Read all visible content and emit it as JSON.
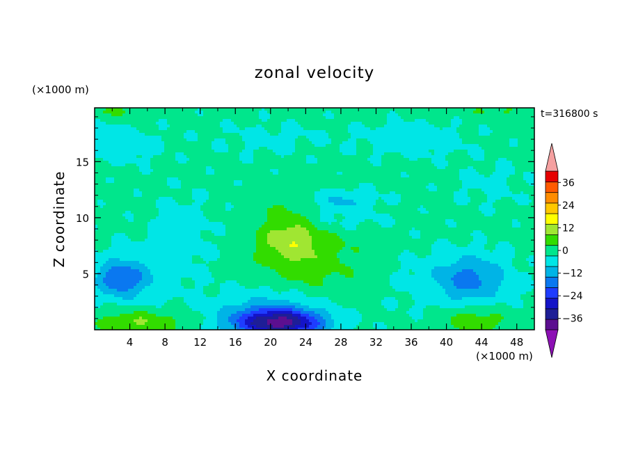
{
  "chart_data": {
    "type": "heatmap",
    "title": "zonal velocity",
    "xlabel": "X coordinate",
    "ylabel": "Z coordinate",
    "x_unit": "(×1000 m)",
    "y_unit": "(×1000 m)",
    "time_label": "t=316800 s",
    "xlim": [
      0,
      50
    ],
    "ylim": [
      0,
      19.8
    ],
    "xticks": [
      4,
      8,
      12,
      16,
      20,
      24,
      28,
      32,
      36,
      40,
      44,
      48
    ],
    "yticks": [
      5,
      10,
      15
    ],
    "colorbar": {
      "ticks": [
        36,
        24,
        12,
        0,
        -12,
        -24,
        -36
      ],
      "levels": [
        -42,
        -36,
        -30,
        -24,
        -18,
        -12,
        -6,
        0,
        6,
        12,
        18,
        24,
        30,
        36,
        42
      ],
      "colors": [
        "#5c0f90",
        "#1e1e96",
        "#1414c8",
        "#1e3cff",
        "#0a78f0",
        "#00b4e6",
        "#00e6e6",
        "#00e68c",
        "#32dc00",
        "#a0e632",
        "#ffff00",
        "#ffc800",
        "#ff8c00",
        "#ff5a00",
        "#e60000"
      ],
      "under_color": "#8c10b4",
      "over_color": "#f5a0a0"
    },
    "features": [
      {
        "x": 21,
        "z": 0.6,
        "sx": 5.0,
        "sz": 1.2,
        "v": -34
      },
      {
        "x": 20,
        "z": 1.6,
        "sx": 6.5,
        "sz": 2.1,
        "v": -10
      },
      {
        "x": 22,
        "z": 8.5,
        "sx": 3.5,
        "sz": 2.5,
        "v": 12
      },
      {
        "x": 25,
        "z": 6.5,
        "sx": 5.5,
        "sz": 4.0,
        "v": 7
      },
      {
        "x": 26,
        "z": 9.6,
        "sx": 6.0,
        "sz": 1.1,
        "v": -6
      },
      {
        "x": 28,
        "z": 11.5,
        "sx": 4.0,
        "sz": 1.0,
        "v": -9
      },
      {
        "x": 43,
        "z": 4.6,
        "sx": 4.0,
        "sz": 2.0,
        "v": -13
      },
      {
        "x": 40,
        "z": 4.0,
        "sx": 6.0,
        "sz": 3.0,
        "v": -4
      },
      {
        "x": 3,
        "z": 4.5,
        "sx": 2.5,
        "sz": 1.4,
        "v": -14
      },
      {
        "x": 4,
        "z": 4.8,
        "sx": 5.0,
        "sz": 2.5,
        "v": -7
      },
      {
        "x": 10,
        "z": 8.5,
        "sx": 3.5,
        "sz": 3.5,
        "v": -4
      },
      {
        "x": 5,
        "z": 0.7,
        "sx": 5.0,
        "sz": 1.0,
        "v": 11
      },
      {
        "x": 43,
        "z": 0.9,
        "sx": 4.0,
        "sz": 1.2,
        "v": 9
      },
      {
        "x": 2,
        "z": 16.5,
        "sx": 5.0,
        "sz": 1.5,
        "v": -6
      },
      {
        "x": 36,
        "z": 17.0,
        "sx": 6.0,
        "sz": 1.5,
        "v": -5
      },
      {
        "x": 20,
        "z": 17.0,
        "sx": 6.0,
        "sz": 1.5,
        "v": -3
      },
      {
        "x": 45,
        "z": 13.0,
        "sx": 4.0,
        "sz": 2.0,
        "v": -3
      },
      {
        "x": 2,
        "z": 19.5,
        "sx": 4.0,
        "sz": 0.6,
        "v": 5
      },
      {
        "x": 46,
        "z": 19.5,
        "sx": 4.0,
        "sz": 0.6,
        "v": 5
      }
    ]
  }
}
